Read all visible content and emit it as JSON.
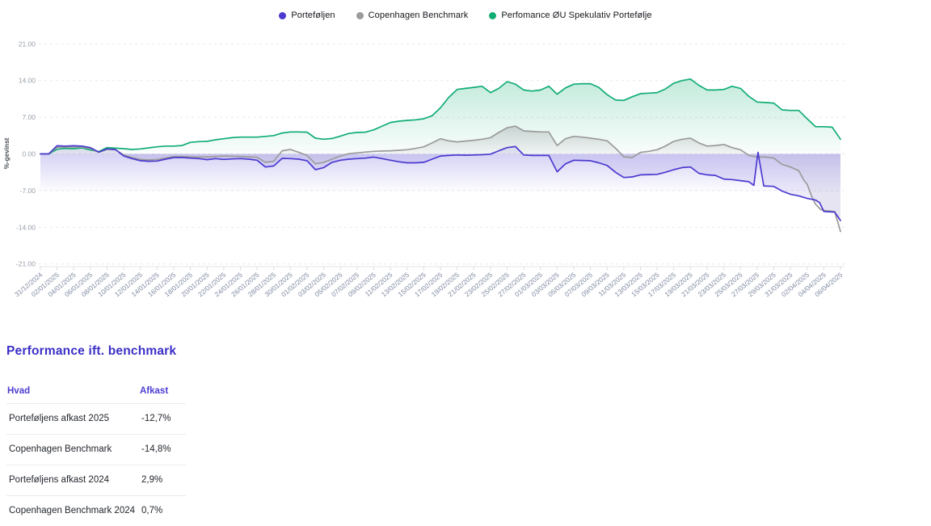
{
  "legend": [
    {
      "label": "Porteføljen",
      "color": "#4b3ad0"
    },
    {
      "label": "Copenhagen Benchmark",
      "color": "#9b9b9b"
    },
    {
      "label": "Perfomance ØU Spekulativ Portefølje",
      "color": "#10ad74"
    }
  ],
  "chart_data": {
    "type": "line",
    "ylabel": "%-gevinst",
    "ylim": [
      -21,
      21
    ],
    "grid": "dashed-horizontal",
    "legend_position": "top-center",
    "y_ticks": [
      "21.00",
      "14.00",
      "7.00",
      "0.00",
      "-7.00",
      "-14.00",
      "-21.00"
    ],
    "y_tick_values": [
      21,
      14,
      7,
      0,
      -7,
      -14,
      -21
    ],
    "x_labels": [
      "31/12/2024",
      "02/01/2025",
      "04/01/2025",
      "06/01/2025",
      "08/01/2025",
      "10/01/2025",
      "12/01/2025",
      "14/01/2025",
      "16/01/2025",
      "18/01/2025",
      "20/01/2025",
      "22/01/2025",
      "24/01/2025",
      "26/01/2025",
      "28/01/2025",
      "30/01/2025",
      "01/02/2025",
      "03/02/2025",
      "05/02/2025",
      "07/02/2025",
      "09/02/2025",
      "11/02/2025",
      "13/02/2025",
      "15/02/2025",
      "17/02/2025",
      "19/02/2025",
      "21/02/2025",
      "23/02/2025",
      "25/02/2025",
      "27/02/2025",
      "01/03/2025",
      "03/03/2025",
      "05/03/2025",
      "07/03/2025",
      "09/03/2025",
      "11/03/2025",
      "13/03/2025",
      "15/03/2025",
      "17/03/2025",
      "19/03/2025",
      "21/03/2025",
      "23/03/2025",
      "25/03/2025",
      "27/03/2025",
      "29/03/2025",
      "31/03/2025",
      "02/04/2025",
      "04/04/2025",
      "06/04/2025"
    ],
    "x_label_step_days": 2,
    "series": [
      {
        "name": "Perfomance ØU Spekulativ Portefølje",
        "color": "#10ad74",
        "fill_top": "rgba(16,173,116,0.26)",
        "fill_bottom": "rgba(16,173,116,0.02)",
        "points": [
          [
            0,
            0
          ],
          [
            1,
            0
          ],
          [
            2,
            0.9
          ],
          [
            3,
            1.05
          ],
          [
            4,
            1.0
          ],
          [
            5,
            1.15
          ],
          [
            6,
            0.75
          ],
          [
            7,
            0.45
          ],
          [
            8,
            1.2
          ],
          [
            9,
            1.1
          ],
          [
            10,
            1.0
          ],
          [
            11,
            0.85
          ],
          [
            12,
            0.95
          ],
          [
            13,
            1.15
          ],
          [
            14,
            1.35
          ],
          [
            15,
            1.5
          ],
          [
            16,
            1.5
          ],
          [
            17,
            1.6
          ],
          [
            18,
            2.2
          ],
          [
            19,
            2.35
          ],
          [
            20,
            2.4
          ],
          [
            21,
            2.7
          ],
          [
            22,
            2.9
          ],
          [
            23,
            3.1
          ],
          [
            24,
            3.2
          ],
          [
            25,
            3.2
          ],
          [
            26,
            3.2
          ],
          [
            27,
            3.35
          ],
          [
            28,
            3.5
          ],
          [
            29,
            4.0
          ],
          [
            30,
            4.2
          ],
          [
            31,
            4.2
          ],
          [
            32,
            4.15
          ],
          [
            33,
            3.0
          ],
          [
            34,
            2.8
          ],
          [
            35,
            2.95
          ],
          [
            36,
            3.4
          ],
          [
            37,
            3.9
          ],
          [
            38,
            4.1
          ],
          [
            39,
            4.15
          ],
          [
            40,
            4.6
          ],
          [
            41,
            5.3
          ],
          [
            42,
            6.0
          ],
          [
            43,
            6.25
          ],
          [
            44,
            6.4
          ],
          [
            45,
            6.5
          ],
          [
            46,
            6.7
          ],
          [
            47,
            7.3
          ],
          [
            48,
            8.8
          ],
          [
            49,
            10.8
          ],
          [
            50,
            12.3
          ],
          [
            51,
            12.5
          ],
          [
            52,
            12.7
          ],
          [
            53,
            12.9
          ],
          [
            54,
            11.7
          ],
          [
            55,
            12.5
          ],
          [
            56,
            13.8
          ],
          [
            57,
            13.3
          ],
          [
            58,
            12.2
          ],
          [
            59,
            12.0
          ],
          [
            60,
            12.2
          ],
          [
            61,
            12.9
          ],
          [
            62,
            11.4
          ],
          [
            63,
            12.6
          ],
          [
            64,
            13.3
          ],
          [
            65,
            13.4
          ],
          [
            66,
            13.4
          ],
          [
            67,
            12.7
          ],
          [
            68,
            11.3
          ],
          [
            69,
            10.3
          ],
          [
            70,
            10.2
          ],
          [
            71,
            10.9
          ],
          [
            72,
            11.5
          ],
          [
            73,
            11.6
          ],
          [
            74,
            11.7
          ],
          [
            75,
            12.4
          ],
          [
            76,
            13.5
          ],
          [
            77,
            14.0
          ],
          [
            78,
            14.3
          ],
          [
            79,
            13.1
          ],
          [
            80,
            12.2
          ],
          [
            81,
            12.2
          ],
          [
            82,
            12.3
          ],
          [
            83,
            12.9
          ],
          [
            84,
            12.5
          ],
          [
            85,
            11.0
          ],
          [
            86,
            9.9
          ],
          [
            87,
            9.8
          ],
          [
            88,
            9.7
          ],
          [
            89,
            8.4
          ],
          [
            90,
            8.3
          ],
          [
            91,
            8.3
          ],
          [
            92,
            6.7
          ],
          [
            93,
            5.2
          ],
          [
            94,
            5.2
          ],
          [
            95,
            5.1
          ],
          [
            96,
            2.8
          ]
        ]
      },
      {
        "name": "Copenhagen Benchmark",
        "color": "#9b9b9b",
        "fill_top": "rgba(150,153,158,0.42)",
        "fill_bottom": "rgba(150,153,158,0.08)",
        "points": [
          [
            0,
            0
          ],
          [
            1,
            0
          ],
          [
            2,
            1.3
          ],
          [
            3,
            1.3
          ],
          [
            4,
            1.35
          ],
          [
            5,
            1.3
          ],
          [
            6,
            1.05
          ],
          [
            7,
            0.3
          ],
          [
            8,
            0.9
          ],
          [
            9,
            0.8
          ],
          [
            10,
            -0.2
          ],
          [
            11,
            -0.7
          ],
          [
            12,
            -1.05
          ],
          [
            13,
            -1.15
          ],
          [
            14,
            -1.05
          ],
          [
            15,
            -0.8
          ],
          [
            16,
            -0.5
          ],
          [
            17,
            -0.5
          ],
          [
            18,
            -0.55
          ],
          [
            19,
            -0.6
          ],
          [
            20,
            -0.6
          ],
          [
            21,
            -0.5
          ],
          [
            22,
            -0.4
          ],
          [
            23,
            -0.45
          ],
          [
            24,
            -0.5
          ],
          [
            25,
            -0.55
          ],
          [
            26,
            -0.65
          ],
          [
            27,
            -1.6
          ],
          [
            28,
            -1.4
          ],
          [
            29,
            0.6
          ],
          [
            30,
            0.85
          ],
          [
            31,
            0.3
          ],
          [
            32,
            -0.3
          ],
          [
            33,
            -1.9
          ],
          [
            34,
            -1.6
          ],
          [
            35,
            -1.0
          ],
          [
            36,
            -0.4
          ],
          [
            37,
            0.05
          ],
          [
            38,
            0.2
          ],
          [
            39,
            0.35
          ],
          [
            40,
            0.5
          ],
          [
            41,
            0.55
          ],
          [
            42,
            0.6
          ],
          [
            43,
            0.7
          ],
          [
            44,
            0.8
          ],
          [
            45,
            1.05
          ],
          [
            46,
            1.35
          ],
          [
            47,
            2.1
          ],
          [
            48,
            2.9
          ],
          [
            49,
            2.5
          ],
          [
            50,
            2.3
          ],
          [
            51,
            2.45
          ],
          [
            52,
            2.6
          ],
          [
            53,
            2.8
          ],
          [
            54,
            3.1
          ],
          [
            55,
            4.1
          ],
          [
            56,
            5.0
          ],
          [
            57,
            5.3
          ],
          [
            58,
            4.4
          ],
          [
            59,
            4.3
          ],
          [
            60,
            4.2
          ],
          [
            61,
            4.2
          ],
          [
            62,
            1.6
          ],
          [
            63,
            2.9
          ],
          [
            64,
            3.35
          ],
          [
            65,
            3.2
          ],
          [
            66,
            3.0
          ],
          [
            67,
            2.8
          ],
          [
            68,
            2.5
          ],
          [
            69,
            1.1
          ],
          [
            70,
            -0.55
          ],
          [
            71,
            -0.7
          ],
          [
            72,
            0.3
          ],
          [
            73,
            0.5
          ],
          [
            74,
            0.8
          ],
          [
            75,
            1.5
          ],
          [
            76,
            2.4
          ],
          [
            77,
            2.8
          ],
          [
            78,
            3.0
          ],
          [
            79,
            2.1
          ],
          [
            80,
            1.5
          ],
          [
            81,
            1.6
          ],
          [
            82,
            1.8
          ],
          [
            83,
            1.2
          ],
          [
            84,
            0.8
          ],
          [
            85,
            -0.3
          ],
          [
            86,
            -0.6
          ],
          [
            87,
            -0.6
          ],
          [
            88,
            -0.8
          ],
          [
            89,
            -2.0
          ],
          [
            90,
            -2.5
          ],
          [
            91,
            -3.2
          ],
          [
            91.6,
            -5.0
          ],
          [
            92,
            -5.8
          ],
          [
            92.6,
            -8.3
          ],
          [
            93,
            -9.6
          ],
          [
            93.6,
            -10.6
          ],
          [
            94,
            -10.8
          ],
          [
            95.3,
            -11.0
          ],
          [
            96,
            -14.8
          ]
        ]
      },
      {
        "name": "Porteføljen",
        "color": "#4b3ad0",
        "fill_flat": "rgba(103,94,216,0.12)",
        "band_top": "rgba(103,94,216,0.27)",
        "band_bottom": "rgba(103,94,216,0)",
        "points": [
          [
            0,
            0
          ],
          [
            1,
            0
          ],
          [
            2,
            1.55
          ],
          [
            3,
            1.5
          ],
          [
            4,
            1.55
          ],
          [
            5,
            1.5
          ],
          [
            6,
            1.2
          ],
          [
            7,
            0.35
          ],
          [
            8,
            0.95
          ],
          [
            9,
            0.85
          ],
          [
            10,
            -0.4
          ],
          [
            11,
            -0.9
          ],
          [
            12,
            -1.3
          ],
          [
            13,
            -1.4
          ],
          [
            14,
            -1.35
          ],
          [
            15,
            -1.0
          ],
          [
            16,
            -0.7
          ],
          [
            17,
            -0.7
          ],
          [
            18,
            -0.8
          ],
          [
            19,
            -0.9
          ],
          [
            20,
            -1.1
          ],
          [
            21,
            -0.9
          ],
          [
            22,
            -1.05
          ],
          [
            23,
            -0.95
          ],
          [
            24,
            -0.9
          ],
          [
            25,
            -1.0
          ],
          [
            26,
            -1.2
          ],
          [
            27,
            -2.5
          ],
          [
            28,
            -2.3
          ],
          [
            29,
            -0.85
          ],
          [
            30,
            -0.9
          ],
          [
            31,
            -1.0
          ],
          [
            32,
            -1.3
          ],
          [
            33,
            -3.0
          ],
          [
            34,
            -2.6
          ],
          [
            35,
            -1.6
          ],
          [
            36,
            -1.2
          ],
          [
            37,
            -1.0
          ],
          [
            38,
            -0.9
          ],
          [
            39,
            -0.8
          ],
          [
            40,
            -0.6
          ],
          [
            41,
            -0.9
          ],
          [
            42,
            -1.2
          ],
          [
            43,
            -1.5
          ],
          [
            44,
            -1.7
          ],
          [
            45,
            -1.7
          ],
          [
            46,
            -1.6
          ],
          [
            47,
            -1.0
          ],
          [
            48,
            -0.4
          ],
          [
            49,
            -0.3
          ],
          [
            50,
            -0.2
          ],
          [
            51,
            -0.25
          ],
          [
            52,
            -0.2
          ],
          [
            53,
            -0.15
          ],
          [
            54,
            -0.05
          ],
          [
            55,
            0.6
          ],
          [
            56,
            1.2
          ],
          [
            57,
            1.4
          ],
          [
            58,
            -0.2
          ],
          [
            59,
            -0.3
          ],
          [
            60,
            -0.3
          ],
          [
            61,
            -0.3
          ],
          [
            62,
            -3.4
          ],
          [
            63,
            -1.9
          ],
          [
            64,
            -1.2
          ],
          [
            65,
            -1.25
          ],
          [
            66,
            -1.3
          ],
          [
            67,
            -1.7
          ],
          [
            68,
            -2.2
          ],
          [
            69,
            -3.5
          ],
          [
            70,
            -4.5
          ],
          [
            71,
            -4.4
          ],
          [
            72,
            -4.0
          ],
          [
            73,
            -3.95
          ],
          [
            74,
            -3.9
          ],
          [
            75,
            -3.5
          ],
          [
            76,
            -3.0
          ],
          [
            77,
            -2.6
          ],
          [
            78,
            -2.5
          ],
          [
            79,
            -3.7
          ],
          [
            80,
            -4.0
          ],
          [
            81,
            -4.1
          ],
          [
            82,
            -4.8
          ],
          [
            83,
            -4.9
          ],
          [
            84,
            -5.1
          ],
          [
            85,
            -5.3
          ],
          [
            85.6,
            -6.0
          ],
          [
            86.1,
            0.3
          ],
          [
            86.8,
            -6.1
          ],
          [
            88,
            -6.2
          ],
          [
            89,
            -7.1
          ],
          [
            90,
            -7.7
          ],
          [
            91,
            -8.0
          ],
          [
            92,
            -8.5
          ],
          [
            93,
            -8.8
          ],
          [
            93.5,
            -9.3
          ],
          [
            94,
            -11.0
          ],
          [
            95.3,
            -11.1
          ],
          [
            96,
            -12.7
          ]
        ]
      }
    ]
  },
  "panel": {
    "title": "Performance ift. benchmark",
    "table": {
      "headers": [
        "Hvad",
        "Afkast"
      ],
      "rows": [
        [
          "Porteføljens afkast 2025",
          "-12,7%"
        ],
        [
          "Copenhagen Benchmark",
          "-14,8%"
        ],
        [
          "Porteføljens afkast 2024",
          "2,9%"
        ],
        [
          "Copenhagen Benchmark 2024",
          "0,7%"
        ]
      ]
    }
  }
}
